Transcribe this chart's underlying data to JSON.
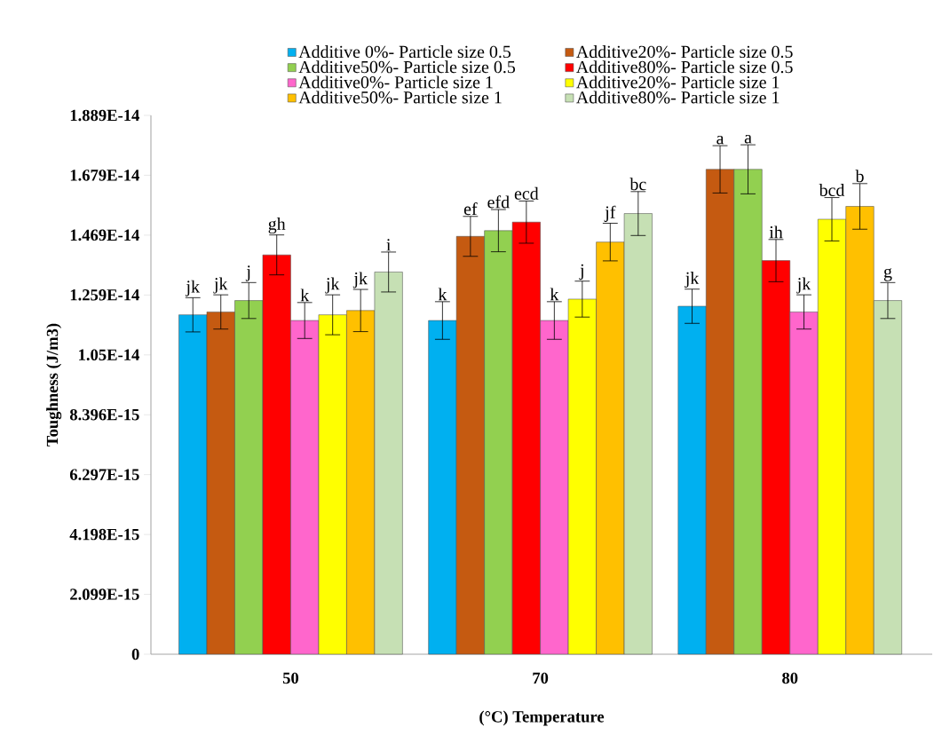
{
  "chart_data": {
    "type": "bar",
    "xlabel": "(°C) Temperature",
    "ylabel": "Toughness (J/m3)",
    "categories": [
      "50",
      "70",
      "80"
    ],
    "ylim": [
      0,
      1.8891e-14
    ],
    "yticks": [
      0,
      {
        "value": 2.099e-15,
        "label": "2.099E-15"
      },
      {
        "value": 4.198e-15,
        "label": "4.198E-15"
      },
      {
        "value": 6.297e-15,
        "label": "6.297E-15"
      },
      {
        "value": 8.396e-15,
        "label": "8.396E-15"
      },
      {
        "value": 1.0495e-14,
        "label": "1.05E-14"
      },
      {
        "value": 1.2594e-14,
        "label": "1.259E-14"
      },
      {
        "value": 1.4693e-14,
        "label": "1.469E-14"
      },
      {
        "value": 1.6792e-14,
        "label": "1.679E-14"
      },
      {
        "value": 1.8891e-14,
        "label": "1.889E-14"
      }
    ],
    "legend": "top",
    "series": [
      {
        "name": "Additive 0%- Particle size 0.5",
        "color": "#00b0f0",
        "values": [
          1.19e-14,
          1.17e-14,
          1.22e-14
        ],
        "errors": [
          6e-16,
          6.6e-16,
          6e-16
        ],
        "value_labels": [
          "jk",
          "k",
          "jk"
        ]
      },
      {
        "name": "Additive20%- Particle size 0.5",
        "color": "#c55a11",
        "values": [
          1.2e-14,
          1.465e-14,
          1.7e-14
        ],
        "errors": [
          6e-16,
          7e-16,
          8.3e-16
        ],
        "value_labels": [
          "jk",
          "ef",
          "a"
        ]
      },
      {
        "name": "Additive50%- Particle size 0.5",
        "color": "#92d050",
        "values": [
          1.24e-14,
          1.485e-14,
          1.7e-14
        ],
        "errors": [
          6.3e-16,
          7.4e-16,
          8.6e-16
        ],
        "value_labels": [
          "j",
          "efd",
          "a"
        ]
      },
      {
        "name": "Additive80%- Particle size 0.5",
        "color": "#ff0000",
        "values": [
          1.4e-14,
          1.515e-14,
          1.38e-14
        ],
        "errors": [
          7e-16,
          7.4e-16,
          7.4e-16
        ],
        "value_labels": [
          "gh",
          "ecd",
          "ih"
        ]
      },
      {
        "name": "Additive0%- Particle size 1",
        "color": "#ff66cc",
        "values": [
          1.17e-14,
          1.17e-14,
          1.2e-14
        ],
        "errors": [
          6.3e-16,
          6.6e-16,
          6e-16
        ],
        "value_labels": [
          "k",
          "k",
          "jk"
        ]
      },
      {
        "name": "Additive20%- Particle size 1",
        "color": "#ffff00",
        "values": [
          1.19e-14,
          1.245e-14,
          1.525e-14
        ],
        "errors": [
          7e-16,
          6.3e-16,
          7.6e-16
        ],
        "value_labels": [
          "jk",
          "j",
          "bcd"
        ]
      },
      {
        "name": "Additive50%- Particle size 1",
        "color": "#ffc000",
        "values": [
          1.205e-14,
          1.445e-14,
          1.57e-14
        ],
        "errors": [
          7.4e-16,
          6.6e-16,
          8e-16
        ],
        "value_labels": [
          "jk",
          "jf",
          "b"
        ]
      },
      {
        "name": "Additive80%- Particle size 1",
        "color": "#c6e0b4",
        "values": [
          1.34e-14,
          1.545e-14,
          1.24e-14
        ],
        "errors": [
          7e-16,
          7.7e-16,
          6.3e-16
        ],
        "value_labels": [
          "i",
          "bc",
          "g"
        ]
      }
    ]
  }
}
